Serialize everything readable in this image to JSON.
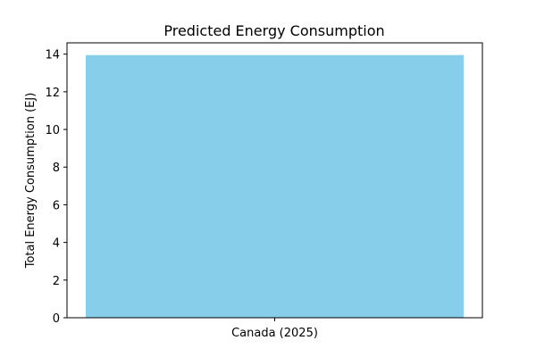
{
  "chart_data": {
    "type": "bar",
    "title": "Predicted Energy Consumption",
    "xlabel": "",
    "ylabel": "Total Energy Consumption (EJ)",
    "categories": [
      "Canada (2025)"
    ],
    "values": [
      13.95
    ],
    "ylim": [
      0,
      14.6
    ],
    "yticks": [
      0,
      2,
      4,
      6,
      8,
      10,
      12,
      14
    ],
    "bar_color": "#87CEEB",
    "grid": false
  }
}
